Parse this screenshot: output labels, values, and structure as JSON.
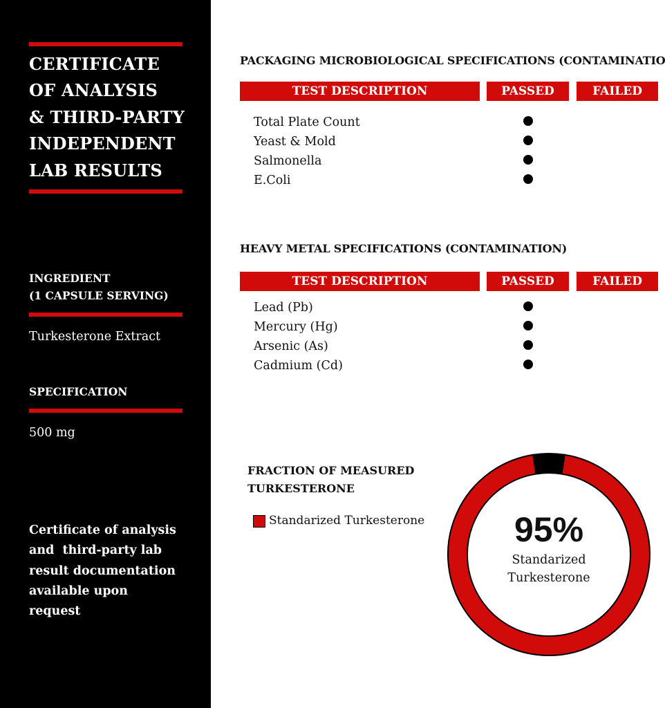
{
  "sidebar": {
    "title_lines": [
      "CERTIFICATE",
      "OF ANALYSIS",
      "& THIRD-PARTY",
      "INDEPENDENT",
      "LAB RESULTS"
    ],
    "ingredient_label_lines": [
      "INGREDIENT",
      "(1 CAPSULE SERVING)"
    ],
    "ingredient_value": "Turkesterone Extract",
    "specification_label": "SPECIFICATION",
    "specification_value": "500 mg",
    "note_lines": [
      "Certificate of analysis",
      "and  third-party lab",
      "result documentation",
      "available upon",
      "request"
    ]
  },
  "sections": [
    {
      "heading": "PACKAGING MICROBIOLOGICAL SPECIFICATIONS (CONTAMINATION)",
      "columns": [
        "TEST DESCRIPTION",
        "PASSED",
        "FAILED"
      ],
      "rows": [
        {
          "name": "Total Plate Count",
          "result": "passed"
        },
        {
          "name": "Yeast & Mold",
          "result": "passed"
        },
        {
          "name": "Salmonella",
          "result": "passed"
        },
        {
          "name": "E.Coli",
          "result": "passed"
        }
      ]
    },
    {
      "heading": "HEAVY METAL SPECIFICATIONS (CONTAMINATION)",
      "columns": [
        "TEST DESCRIPTION",
        "PASSED",
        "FAILED"
      ],
      "rows": [
        {
          "name": "Lead (Pb)",
          "result": "passed"
        },
        {
          "name": "Mercury (Hg)",
          "result": "passed"
        },
        {
          "name": "Arsenic (As)",
          "result": "passed"
        },
        {
          "name": "Cadmium (Cd)",
          "result": "passed"
        }
      ]
    }
  ],
  "fraction": {
    "heading_lines": [
      "FRACTION OF MEASURED",
      "TURKESTERONE"
    ],
    "legend": "Standarized Turkesterone",
    "percent_label": "95%",
    "center_lines": [
      "Standarized",
      "Turkesterone"
    ]
  },
  "chart_data": {
    "type": "pie",
    "style": "donut",
    "values": [
      95,
      5
    ],
    "legend": [
      "Standarized Turkesterone"
    ],
    "colors": [
      "#d10a0a",
      "#000000"
    ]
  },
  "colors": {
    "accent": "#d10a0a",
    "sidebar": "#000000"
  }
}
